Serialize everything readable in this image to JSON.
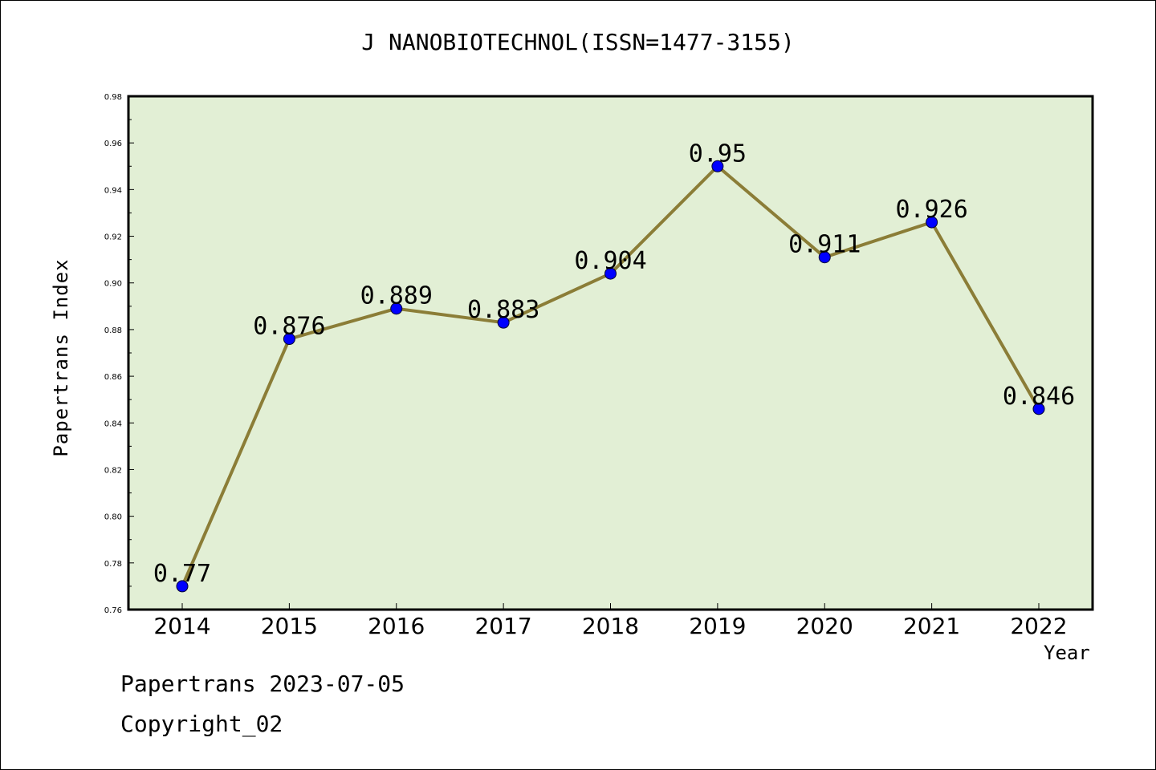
{
  "chart_data": {
    "type": "line",
    "title": "J NANOBIOTECHNOL(ISSN=1477-3155)",
    "xlabel": "Year",
    "ylabel": "Papertrans Index",
    "categories": [
      "2014",
      "2015",
      "2016",
      "2017",
      "2018",
      "2019",
      "2020",
      "2021",
      "2022"
    ],
    "values": [
      0.77,
      0.876,
      0.889,
      0.883,
      0.904,
      0.95,
      0.911,
      0.926,
      0.846
    ],
    "data_labels": [
      "0.77",
      "0.876",
      "0.889",
      "0.883",
      "0.904",
      "0.95",
      "0.911",
      "0.926",
      "0.846"
    ],
    "ylim": [
      0.76,
      0.98
    ],
    "yticks": [
      "0.76",
      "0.78",
      "0.80",
      "0.82",
      "0.84",
      "0.86",
      "0.88",
      "0.90",
      "0.92",
      "0.94",
      "0.96",
      "0.98"
    ],
    "grid": false,
    "legend": "none",
    "colors": {
      "plot_background": "#e2efd5",
      "line": "#8b7d37",
      "marker": "#0000ff"
    }
  },
  "footer": {
    "line1": "Papertrans 2023-07-05",
    "line2": "Copyright_02"
  }
}
